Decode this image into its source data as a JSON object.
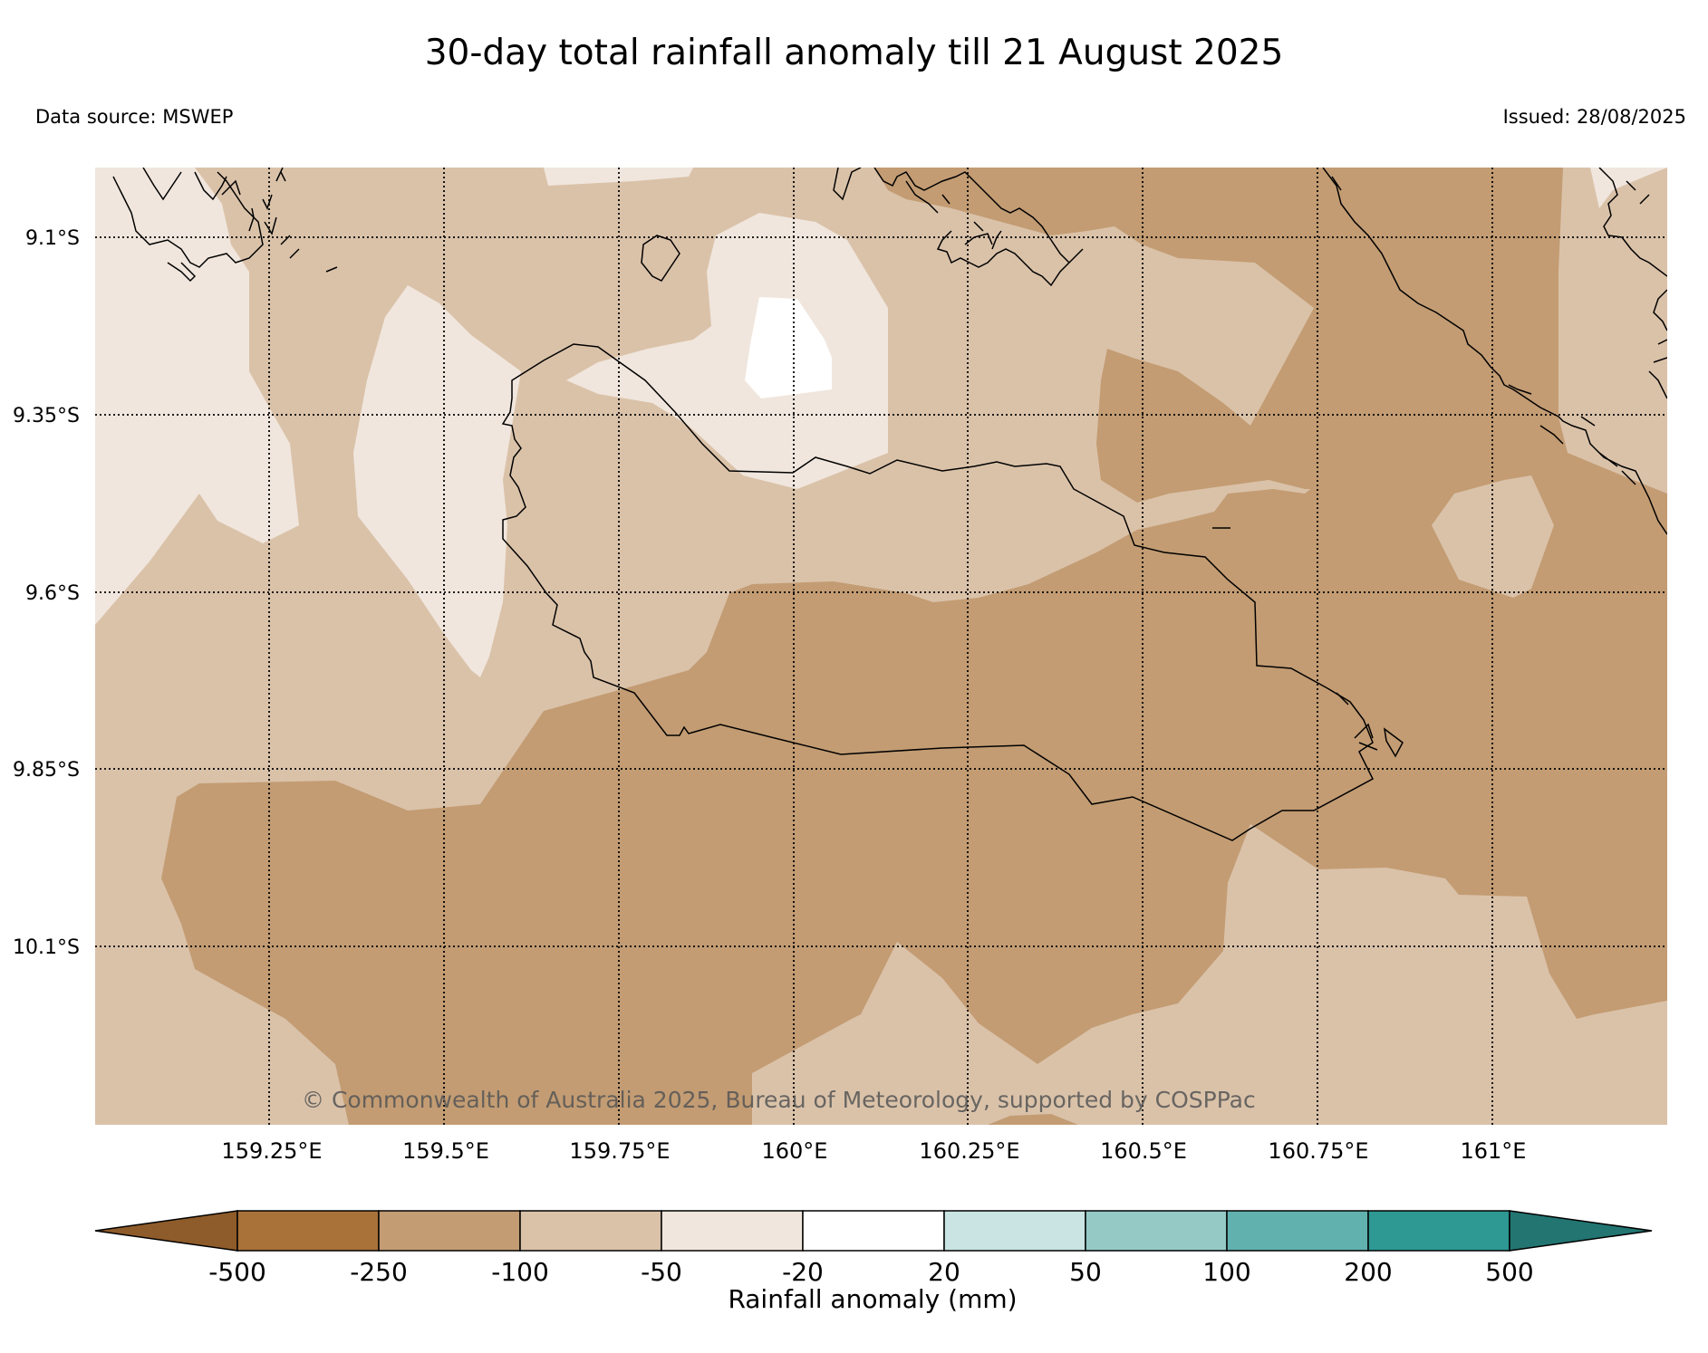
{
  "header": {
    "title": "30-day total rainfall anomaly till 21 August 2025",
    "data_source": "Data source: MSWEP",
    "issued": "Issued: 28/08/2025"
  },
  "map": {
    "lat_labels": [
      "9.1°S",
      "9.35°S",
      "9.6°S",
      "9.85°S",
      "10.1°S"
    ],
    "lon_labels": [
      "159.25°E",
      "159.5°E",
      "159.75°E",
      "160°E",
      "160.25°E",
      "160.5°E",
      "160.75°E",
      "161°E"
    ],
    "copyright": "© Commonwealth of Australia 2025, Bureau of Meteorology, supported by COSPPac"
  },
  "colorbar": {
    "label": "Rainfall anomaly (mm)",
    "ticks": [
      "-500",
      "-250",
      "-100",
      "-50",
      "-20",
      "20",
      "50",
      "100",
      "200",
      "500"
    ],
    "colors": [
      "#8e5b2a",
      "#a97239",
      "#c39c73",
      "#dac2a9",
      "#f0e6dd",
      "#ffffff",
      "#c9e4e2",
      "#95c9c6",
      "#61b1af",
      "#2e9893",
      "#227571"
    ]
  },
  "colors": {
    "band_lt_100": "#c39c73",
    "band_lt_50": "#dac2a9",
    "band_lt_20": "#f0e6dd",
    "band_near_normal": "#ffffff"
  }
}
